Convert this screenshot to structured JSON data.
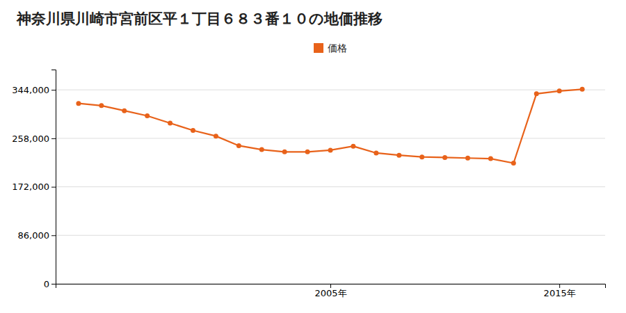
{
  "chart_data": {
    "type": "line",
    "title": "神奈川県川崎市宮前区平１丁目６８３番１０の地価推移",
    "x": [
      1994,
      1995,
      1996,
      1997,
      1998,
      1999,
      2000,
      2001,
      2002,
      2003,
      2004,
      2005,
      2006,
      2007,
      2008,
      2009,
      2010,
      2011,
      2012,
      2013,
      2014,
      2015,
      2016
    ],
    "series": [
      {
        "name": "価格",
        "color": "#e8621a",
        "marker": "circle",
        "values": [
          320000,
          316000,
          307000,
          298000,
          285000,
          272000,
          262000,
          245000,
          238000,
          234000,
          234000,
          237000,
          244000,
          232000,
          228000,
          225000,
          224000,
          223000,
          222000,
          214000,
          337000,
          342000,
          345000
        ]
      }
    ],
    "xlim": [
      1993,
      2017
    ],
    "xticks": [
      {
        "value": 2005,
        "label": "2005年"
      },
      {
        "value": 2015,
        "label": "2015年"
      }
    ],
    "ylim": [
      0,
      380000
    ],
    "yticks": [
      0,
      {
        "value": 86000,
        "label": "86,000"
      },
      {
        "value": 172000,
        "label": "172,000"
      },
      {
        "value": 258000,
        "label": "258,000"
      },
      {
        "value": 344000,
        "label": "344,000"
      }
    ],
    "grid": true,
    "legend": "top"
  }
}
